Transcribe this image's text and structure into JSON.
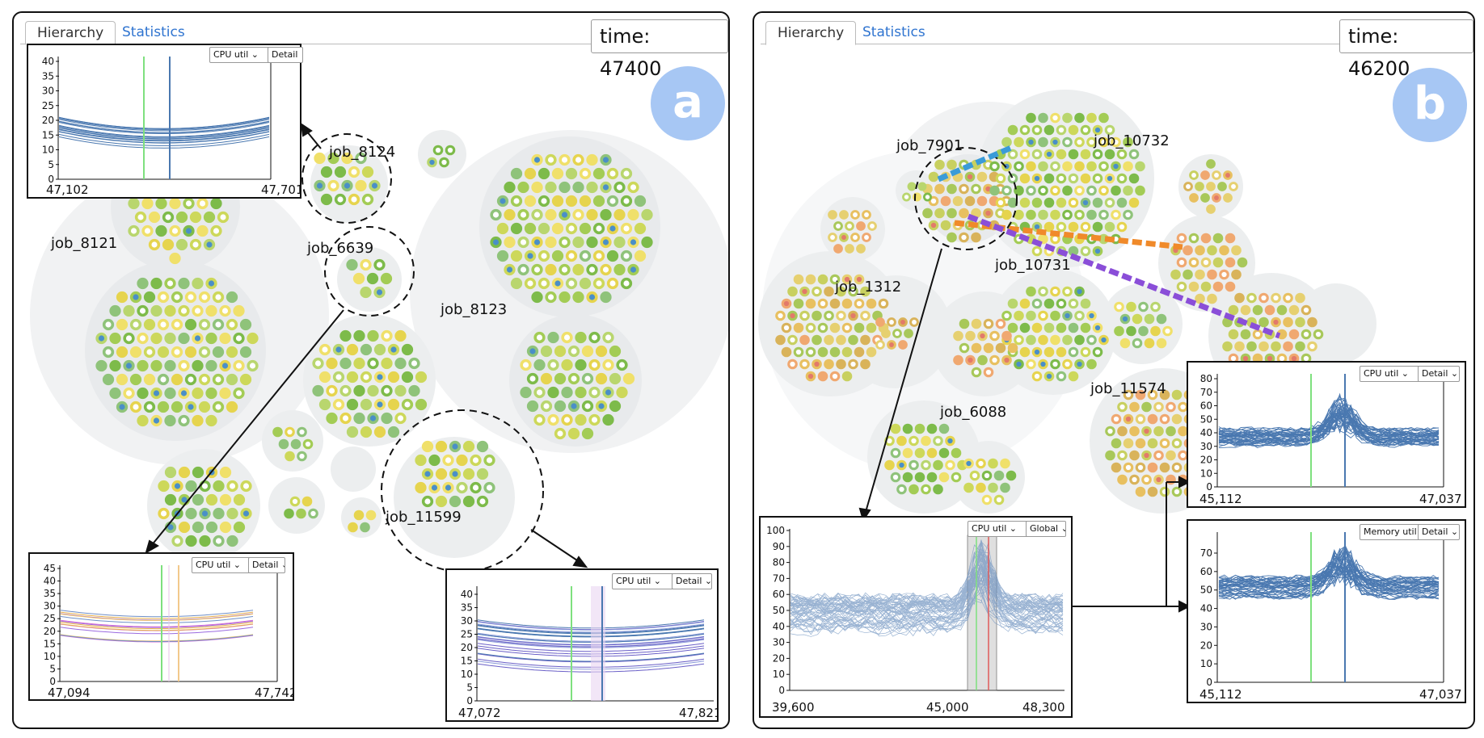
{
  "panel_a": {
    "tabs": [
      {
        "label": "Hierarchy",
        "active": true
      },
      {
        "label": "Statistics",
        "active": false
      }
    ],
    "time_label": "time: 47400",
    "badge": "a",
    "jobs": [
      "job_8124",
      "job_8121",
      "job_6639",
      "job_8123",
      "job_11599"
    ],
    "insets": [
      {
        "metric": "CPU util",
        "mode": "Detail",
        "yticks": [
          "40",
          "35",
          "30",
          "25",
          "20",
          "15",
          "10",
          "5",
          "0"
        ],
        "xmin": "47,102",
        "xmax": "47,701"
      },
      {
        "metric": "CPU util",
        "mode": "Detail",
        "yticks": [
          "45",
          "40",
          "35",
          "30",
          "25",
          "20",
          "15",
          "10",
          "5",
          "0"
        ],
        "xmin": "47,094",
        "xmax": "47,742"
      },
      {
        "metric": "CPU util",
        "mode": "Detail",
        "yticks": [
          "40",
          "35",
          "30",
          "25",
          "20",
          "15",
          "10",
          "5",
          "0"
        ],
        "xmin": "47,072",
        "xmax": "47,821"
      }
    ]
  },
  "panel_b": {
    "tabs": [
      {
        "label": "Hierarchy",
        "active": true
      },
      {
        "label": "Statistics",
        "active": false
      }
    ],
    "time_label": "time: 46200",
    "badge": "b",
    "jobs": [
      "job_7901",
      "job_10732",
      "job_10731",
      "job_1312",
      "job_11574",
      "job_6088"
    ],
    "insets": [
      {
        "metric": "CPU util",
        "mode": "Global",
        "yticks": [
          "100",
          "90",
          "80",
          "70",
          "60",
          "50",
          "40",
          "30",
          "20",
          "10",
          "0"
        ],
        "xmin": "39,600",
        "xmid": "45,000",
        "xmax": "48,300"
      },
      {
        "metric": "CPU util",
        "mode": "Detail",
        "yticks": [
          "80",
          "70",
          "60",
          "50",
          "40",
          "30",
          "20",
          "10",
          "0"
        ],
        "xmin": "45,112",
        "xmax": "47,037"
      },
      {
        "metric": "Memory util",
        "mode": "Detail",
        "yticks": [
          "70",
          "60",
          "50",
          "40",
          "30",
          "20",
          "10",
          "0"
        ],
        "xmin": "45,112",
        "xmax": "47,037"
      }
    ]
  },
  "colors": {
    "accent_blue": "#2f74d0",
    "badge": "#a7c7f4",
    "line_blue": "#4a78b0",
    "marker_green": "#7ee07e",
    "highlight_orange": "#f08a2a",
    "highlight_purple": "#8a4ed8",
    "highlight_cyan": "#3a9bd8"
  }
}
